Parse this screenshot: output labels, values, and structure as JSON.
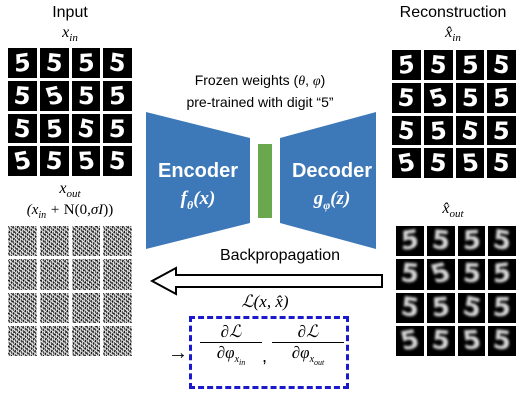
{
  "input": {
    "title": "Input",
    "x_in_label": "x_in",
    "x_out_label": "x_out",
    "x_out_formula": "(x_in + N(0,σI))",
    "digit": "5"
  },
  "reconstruction": {
    "title": "Reconstruction",
    "xhat_in_label": "x̂_in",
    "xhat_out_label": "x̂_out"
  },
  "frozen_note": {
    "line1": "Frozen weights (θ, φ)",
    "line2": "pre-trained with digit “5”"
  },
  "encoder": {
    "label": "Encoder",
    "func": "fθ(x)",
    "color": "#3d78b8"
  },
  "decoder": {
    "label": "Decoder",
    "func": "gφ(z)",
    "color": "#3d78b8"
  },
  "latent": {
    "color": "#6aa84f"
  },
  "backprop": {
    "label": "Backpropagation"
  },
  "loss": {
    "label": "L(x, x̂)"
  },
  "gradients": {
    "border_color": "#1a1acc",
    "grad1_num": "∂L",
    "grad1_den": "∂φ",
    "grad1_sub": "x_in",
    "sep": ",",
    "grad2_num": "∂L",
    "grad2_den": "∂φ",
    "grad2_sub": "x_out",
    "arrow": "→"
  }
}
